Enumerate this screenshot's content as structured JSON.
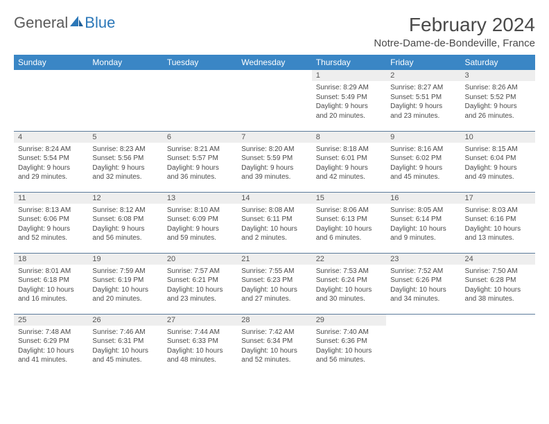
{
  "logo": {
    "text1": "General",
    "text2": "Blue"
  },
  "title": "February 2024",
  "location": "Notre-Dame-de-Bondeville, France",
  "colors": {
    "header_bg": "#3a86c5",
    "header_fg": "#ffffff",
    "daynum_bg": "#eeeeee",
    "border": "#5b7a9a",
    "logo_blue": "#2b77b8",
    "text": "#4a4a4a"
  },
  "weekdays": [
    "Sunday",
    "Monday",
    "Tuesday",
    "Wednesday",
    "Thursday",
    "Friday",
    "Saturday"
  ],
  "weeks": [
    [
      null,
      null,
      null,
      null,
      {
        "n": "1",
        "sr": "Sunrise: 8:29 AM",
        "ss": "Sunset: 5:49 PM",
        "d1": "Daylight: 9 hours",
        "d2": "and 20 minutes."
      },
      {
        "n": "2",
        "sr": "Sunrise: 8:27 AM",
        "ss": "Sunset: 5:51 PM",
        "d1": "Daylight: 9 hours",
        "d2": "and 23 minutes."
      },
      {
        "n": "3",
        "sr": "Sunrise: 8:26 AM",
        "ss": "Sunset: 5:52 PM",
        "d1": "Daylight: 9 hours",
        "d2": "and 26 minutes."
      }
    ],
    [
      {
        "n": "4",
        "sr": "Sunrise: 8:24 AM",
        "ss": "Sunset: 5:54 PM",
        "d1": "Daylight: 9 hours",
        "d2": "and 29 minutes."
      },
      {
        "n": "5",
        "sr": "Sunrise: 8:23 AM",
        "ss": "Sunset: 5:56 PM",
        "d1": "Daylight: 9 hours",
        "d2": "and 32 minutes."
      },
      {
        "n": "6",
        "sr": "Sunrise: 8:21 AM",
        "ss": "Sunset: 5:57 PM",
        "d1": "Daylight: 9 hours",
        "d2": "and 36 minutes."
      },
      {
        "n": "7",
        "sr": "Sunrise: 8:20 AM",
        "ss": "Sunset: 5:59 PM",
        "d1": "Daylight: 9 hours",
        "d2": "and 39 minutes."
      },
      {
        "n": "8",
        "sr": "Sunrise: 8:18 AM",
        "ss": "Sunset: 6:01 PM",
        "d1": "Daylight: 9 hours",
        "d2": "and 42 minutes."
      },
      {
        "n": "9",
        "sr": "Sunrise: 8:16 AM",
        "ss": "Sunset: 6:02 PM",
        "d1": "Daylight: 9 hours",
        "d2": "and 45 minutes."
      },
      {
        "n": "10",
        "sr": "Sunrise: 8:15 AM",
        "ss": "Sunset: 6:04 PM",
        "d1": "Daylight: 9 hours",
        "d2": "and 49 minutes."
      }
    ],
    [
      {
        "n": "11",
        "sr": "Sunrise: 8:13 AM",
        "ss": "Sunset: 6:06 PM",
        "d1": "Daylight: 9 hours",
        "d2": "and 52 minutes."
      },
      {
        "n": "12",
        "sr": "Sunrise: 8:12 AM",
        "ss": "Sunset: 6:08 PM",
        "d1": "Daylight: 9 hours",
        "d2": "and 56 minutes."
      },
      {
        "n": "13",
        "sr": "Sunrise: 8:10 AM",
        "ss": "Sunset: 6:09 PM",
        "d1": "Daylight: 9 hours",
        "d2": "and 59 minutes."
      },
      {
        "n": "14",
        "sr": "Sunrise: 8:08 AM",
        "ss": "Sunset: 6:11 PM",
        "d1": "Daylight: 10 hours",
        "d2": "and 2 minutes."
      },
      {
        "n": "15",
        "sr": "Sunrise: 8:06 AM",
        "ss": "Sunset: 6:13 PM",
        "d1": "Daylight: 10 hours",
        "d2": "and 6 minutes."
      },
      {
        "n": "16",
        "sr": "Sunrise: 8:05 AM",
        "ss": "Sunset: 6:14 PM",
        "d1": "Daylight: 10 hours",
        "d2": "and 9 minutes."
      },
      {
        "n": "17",
        "sr": "Sunrise: 8:03 AM",
        "ss": "Sunset: 6:16 PM",
        "d1": "Daylight: 10 hours",
        "d2": "and 13 minutes."
      }
    ],
    [
      {
        "n": "18",
        "sr": "Sunrise: 8:01 AM",
        "ss": "Sunset: 6:18 PM",
        "d1": "Daylight: 10 hours",
        "d2": "and 16 minutes."
      },
      {
        "n": "19",
        "sr": "Sunrise: 7:59 AM",
        "ss": "Sunset: 6:19 PM",
        "d1": "Daylight: 10 hours",
        "d2": "and 20 minutes."
      },
      {
        "n": "20",
        "sr": "Sunrise: 7:57 AM",
        "ss": "Sunset: 6:21 PM",
        "d1": "Daylight: 10 hours",
        "d2": "and 23 minutes."
      },
      {
        "n": "21",
        "sr": "Sunrise: 7:55 AM",
        "ss": "Sunset: 6:23 PM",
        "d1": "Daylight: 10 hours",
        "d2": "and 27 minutes."
      },
      {
        "n": "22",
        "sr": "Sunrise: 7:53 AM",
        "ss": "Sunset: 6:24 PM",
        "d1": "Daylight: 10 hours",
        "d2": "and 30 minutes."
      },
      {
        "n": "23",
        "sr": "Sunrise: 7:52 AM",
        "ss": "Sunset: 6:26 PM",
        "d1": "Daylight: 10 hours",
        "d2": "and 34 minutes."
      },
      {
        "n": "24",
        "sr": "Sunrise: 7:50 AM",
        "ss": "Sunset: 6:28 PM",
        "d1": "Daylight: 10 hours",
        "d2": "and 38 minutes."
      }
    ],
    [
      {
        "n": "25",
        "sr": "Sunrise: 7:48 AM",
        "ss": "Sunset: 6:29 PM",
        "d1": "Daylight: 10 hours",
        "d2": "and 41 minutes."
      },
      {
        "n": "26",
        "sr": "Sunrise: 7:46 AM",
        "ss": "Sunset: 6:31 PM",
        "d1": "Daylight: 10 hours",
        "d2": "and 45 minutes."
      },
      {
        "n": "27",
        "sr": "Sunrise: 7:44 AM",
        "ss": "Sunset: 6:33 PM",
        "d1": "Daylight: 10 hours",
        "d2": "and 48 minutes."
      },
      {
        "n": "28",
        "sr": "Sunrise: 7:42 AM",
        "ss": "Sunset: 6:34 PM",
        "d1": "Daylight: 10 hours",
        "d2": "and 52 minutes."
      },
      {
        "n": "29",
        "sr": "Sunrise: 7:40 AM",
        "ss": "Sunset: 6:36 PM",
        "d1": "Daylight: 10 hours",
        "d2": "and 56 minutes."
      },
      null,
      null
    ]
  ]
}
